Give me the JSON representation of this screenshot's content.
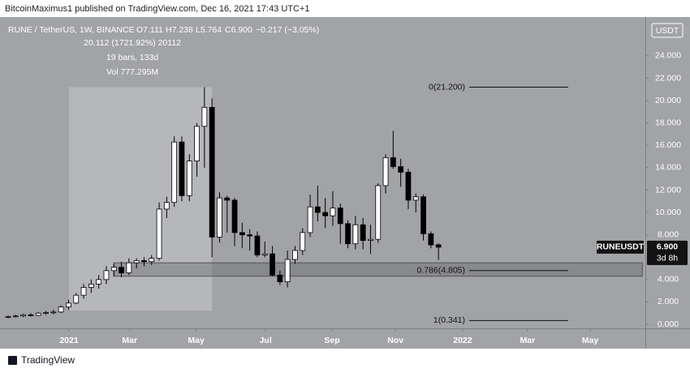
{
  "header": {
    "publisher": "BitcoinMaximus1 published on TradingView.com, Dec 16, 2021 17:43 UTC+1"
  },
  "footer": {
    "brand": "TradingView"
  },
  "chart_data": {
    "type": "candlestick",
    "legend": {
      "symbol": "RUNE / TetherUS, 1W, BINANCE",
      "open": "O7.111",
      "high": "H7.238",
      "low": "L5.764",
      "close": "C6.900",
      "change": "−0.217 (−3.05%)"
    },
    "currency": "USDT",
    "up_color": "#ffffff",
    "down_color": "#000000",
    "open": [
      0.65,
      0.7,
      0.75,
      0.85,
      0.8,
      1.0,
      1.05,
      1.1,
      1.55,
      1.9,
      2.6,
      3.3,
      3.6,
      4.0,
      4.8,
      5.1,
      4.6,
      5.5,
      5.7,
      5.6,
      5.9,
      10.3,
      10.9,
      16.3,
      11.5,
      14.6,
      17.7,
      19.4,
      7.8,
      11.3,
      11.1,
      8.2,
      8.0,
      7.9,
      6.2,
      6.3,
      4.4,
      3.8,
      5.8,
      6.6,
      8.2,
      10.5,
      10.0,
      9.7,
      10.4,
      9.0,
      7.2,
      8.9,
      7.5,
      7.6,
      12.4,
      14.9,
      14.1,
      13.6,
      11.1,
      11.4,
      8.1,
      7.111
    ],
    "high": [
      0.8,
      0.85,
      0.95,
      1.0,
      1.1,
      1.2,
      1.3,
      1.7,
      2.2,
      2.8,
      3.6,
      4.0,
      4.4,
      5.2,
      5.4,
      5.6,
      5.9,
      5.9,
      6.0,
      6.2,
      10.9,
      11.4,
      16.8,
      16.8,
      15.2,
      18.0,
      21.2,
      20.2,
      11.8,
      11.5,
      11.3,
      9.1,
      8.5,
      8.3,
      7.4,
      7.0,
      4.8,
      6.6,
      7.0,
      8.6,
      11.6,
      12.4,
      11.3,
      11.9,
      10.8,
      9.3,
      9.7,
      9.5,
      8.9,
      12.6,
      15.2,
      17.3,
      14.8,
      13.9,
      11.7,
      11.6,
      8.3,
      7.238
    ],
    "low": [
      0.55,
      0.6,
      0.65,
      0.7,
      0.75,
      0.85,
      0.9,
      1.0,
      1.3,
      1.8,
      2.3,
      2.8,
      3.2,
      3.6,
      4.3,
      4.2,
      4.4,
      5.0,
      5.2,
      5.3,
      5.7,
      9.5,
      10.5,
      11.0,
      11.0,
      13.2,
      14.0,
      6.0,
      7.3,
      8.2,
      7.0,
      6.8,
      6.6,
      6.0,
      6.0,
      4.3,
      3.5,
      3.3,
      5.4,
      6.2,
      7.8,
      9.2,
      8.6,
      8.8,
      7.2,
      6.8,
      6.7,
      6.7,
      6.3,
      7.3,
      11.7,
      13.9,
      12.3,
      10.3,
      10.0,
      7.5,
      6.8,
      5.764
    ],
    "close": [
      0.7,
      0.75,
      0.85,
      0.8,
      1.0,
      1.05,
      1.1,
      1.55,
      1.9,
      2.6,
      3.3,
      3.6,
      4.0,
      4.8,
      5.1,
      4.6,
      5.5,
      5.7,
      5.6,
      5.9,
      10.3,
      10.9,
      16.3,
      11.5,
      14.6,
      17.7,
      19.4,
      7.8,
      11.3,
      11.1,
      8.2,
      8.0,
      7.9,
      6.2,
      6.3,
      4.4,
      3.8,
      5.8,
      6.6,
      8.2,
      10.5,
      10.0,
      9.7,
      10.4,
      9.0,
      7.2,
      8.9,
      7.5,
      7.6,
      12.4,
      14.9,
      14.1,
      13.6,
      11.1,
      11.4,
      8.1,
      7.1,
      6.9
    ],
    "xlim": [
      -1.08,
      84.4
    ],
    "xticks": [
      {
        "value": 8.06,
        "label": "2021"
      },
      {
        "value": 16.1,
        "label": "Mar"
      },
      {
        "value": 24.9,
        "label": "May"
      },
      {
        "value": 34.1,
        "label": "Jul"
      },
      {
        "value": 42.9,
        "label": "Sep"
      },
      {
        "value": 51.3,
        "label": "Nov"
      },
      {
        "value": 60.2,
        "label": "2022"
      },
      {
        "value": 68.8,
        "label": "Mar"
      },
      {
        "value": 77.1,
        "label": "May"
      }
    ],
    "ylim": [
      -0.36,
      27.4
    ],
    "yticks": [
      {
        "value": 0,
        "label": "0.000"
      },
      {
        "value": 2,
        "label": "2.000"
      },
      {
        "value": 4,
        "label": "4.000"
      },
      {
        "value": 6,
        "label": "6.000"
      },
      {
        "value": 8,
        "label": "8.000"
      },
      {
        "value": 10,
        "label": "10.000"
      },
      {
        "value": 12,
        "label": "12.000"
      },
      {
        "value": 14,
        "label": "14.000"
      },
      {
        "value": 16,
        "label": "16.000"
      },
      {
        "value": 18,
        "label": "18.000"
      },
      {
        "value": 20,
        "label": "20.000"
      },
      {
        "value": 22,
        "label": "22.000"
      },
      {
        "value": 24,
        "label": "24.000"
      }
    ],
    "measure": {
      "from": 8.06,
      "to": 27,
      "low": 1.22,
      "high": 21.2,
      "labels": [
        "20.112 (1721.92%) 20112",
        "19 bars, 133d",
        "Vol 777.295M"
      ]
    },
    "zone": {
      "from": 14,
      "to": 84,
      "low": 4.3,
      "high": 5.5
    },
    "fib": [
      {
        "value": 21.2,
        "label": "0(21.200)"
      },
      {
        "value": 4.805,
        "label": "0.786(4.805)"
      },
      {
        "value": 0.341,
        "label": "1(0.341)"
      }
    ],
    "price_tag": {
      "value": 6.9,
      "name": "RUNEUSDT",
      "label": "6.900",
      "countdown": "3d 8h"
    }
  }
}
